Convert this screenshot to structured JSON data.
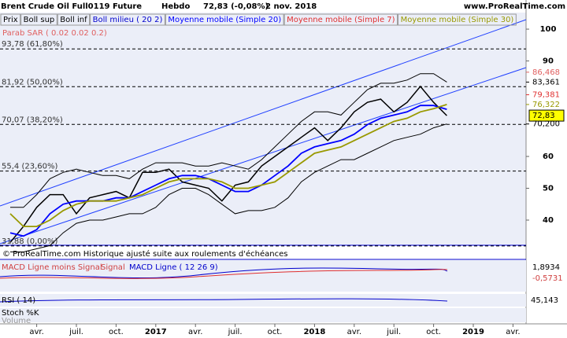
{
  "header": {
    "title": "Brent Crude Oil Full0119 Future",
    "period": "Hebdo",
    "quote": "72,83 (-0,08%)",
    "date": "2 nov. 2018",
    "site": "www.ProRealTime.com"
  },
  "legend": {
    "items": [
      "Prix",
      "Boll sup",
      "Boll inf",
      "Boll milieu ( 20 2)",
      "Moyenne mobile (Simple 20)",
      "Moyenne mobile (Simple 7)",
      "Moyenne mobile (Simple 30)"
    ],
    "sar": "Parab SAR ( 0.02 0.02 0.2)"
  },
  "footer": "© ProRealTime.com Historique ajusté suite aux roulements d'échéances",
  "panels": {
    "macd": {
      "labels": [
        "MACD Ligne moins Signal",
        "Signal",
        "MACD Ligne ( 12 26 9)"
      ],
      "values": [
        "1,8934",
        "-0,5731"
      ]
    },
    "rsi": {
      "label": "RSI ( 14)",
      "value": "45,143"
    },
    "stoch": {
      "label": "Stoch %K"
    },
    "volume": {
      "label": "Volume"
    }
  },
  "chart_data": {
    "type": "line",
    "categories": [
      null,
      null,
      "avr.",
      null,
      null,
      "juil.",
      null,
      null,
      "oct.",
      null,
      null,
      "2017",
      null,
      null,
      "avr.",
      null,
      null,
      "juil.",
      null,
      null,
      "oct.",
      null,
      null,
      "2018",
      null,
      null,
      "avr.",
      null,
      null,
      "juil.",
      null,
      null,
      "oct.",
      null,
      null,
      "2019",
      null,
      null,
      "avr."
    ],
    "series": [
      {
        "name": "Prix",
        "color": "#000000",
        "values": [
          33,
          38,
          44,
          48,
          48,
          42,
          47,
          48,
          49,
          47,
          55,
          55,
          56,
          52,
          51,
          50,
          46,
          51,
          52,
          57,
          60,
          63,
          66,
          69,
          65,
          69,
          74,
          77,
          78,
          74,
          77,
          82,
          77,
          72.83,
          null,
          null,
          null,
          null,
          null
        ]
      },
      {
        "name": "Boll sup",
        "color": "#000000",
        "values": [
          44,
          44,
          48,
          53,
          55,
          56,
          55,
          54,
          54,
          53,
          56,
          58,
          58,
          58,
          57,
          57,
          58,
          57,
          56,
          59,
          63,
          67,
          71,
          74,
          74,
          73,
          77,
          81,
          83,
          83,
          84,
          86,
          86,
          83.36,
          null,
          null,
          null,
          null,
          null
        ]
      },
      {
        "name": "Boll inf",
        "color": "#000000",
        "values": [
          30,
          30,
          31,
          32,
          36,
          39,
          40,
          40,
          41,
          42,
          42,
          44,
          48,
          50,
          50,
          48,
          45,
          42,
          43,
          43,
          44,
          47,
          52,
          55,
          57,
          59,
          59,
          61,
          63,
          65,
          66,
          67,
          69,
          70.2,
          null,
          null,
          null,
          null,
          null
        ]
      },
      {
        "name": "Moyenne mobile (Simple 20)",
        "color": "#0000ff",
        "values": [
          36,
          35,
          37,
          42,
          45,
          46,
          46,
          46,
          47,
          47,
          49,
          51,
          53,
          54,
          54,
          53,
          51,
          49,
          49,
          51,
          54,
          57,
          61,
          63,
          64,
          65,
          67,
          70,
          72,
          73,
          74,
          76,
          76,
          74.8,
          null,
          null,
          null,
          null,
          null
        ]
      },
      {
        "name": "Moyenne mobile (Simple 30)",
        "color": "#999900",
        "values": [
          42,
          38,
          38,
          40,
          43,
          45,
          46,
          46,
          46,
          47,
          48,
          50,
          52,
          53,
          53,
          53,
          52,
          50,
          50,
          51,
          52,
          55,
          58,
          61,
          62,
          63,
          65,
          67,
          69,
          71,
          72,
          74,
          75,
          76.32,
          null,
          null,
          null,
          null,
          null
        ]
      }
    ],
    "ylim": [
      32.1,
      105.2
    ],
    "yticks": [
      40,
      50,
      60,
      90,
      100
    ],
    "levels": [
      {
        "value": 93.78,
        "label": "93,78 (61,80%)"
      },
      {
        "value": 81.92,
        "label": "81,92 (50,00%)"
      },
      {
        "value": 70.07,
        "label": "70,07 (38,20%)"
      },
      {
        "value": 55.4,
        "label": "55,4 (23,60%)"
      },
      {
        "value": 31.88,
        "label": "31,88 (0,00%)"
      }
    ],
    "right_labels": [
      {
        "value": 86.468,
        "label": "86,468",
        "color": "#e06060"
      },
      {
        "value": 83.361,
        "label": "83,361",
        "color": "#000000"
      },
      {
        "value": 79.381,
        "label": "79,381",
        "color": "#e03030"
      },
      {
        "value": 76.322,
        "label": "76,322",
        "color": "#999900"
      },
      {
        "value": 72.83,
        "label": "72,83",
        "color": "#000000"
      },
      {
        "value": 70.2,
        "label": "70,200",
        "color": "#000000"
      }
    ]
  }
}
